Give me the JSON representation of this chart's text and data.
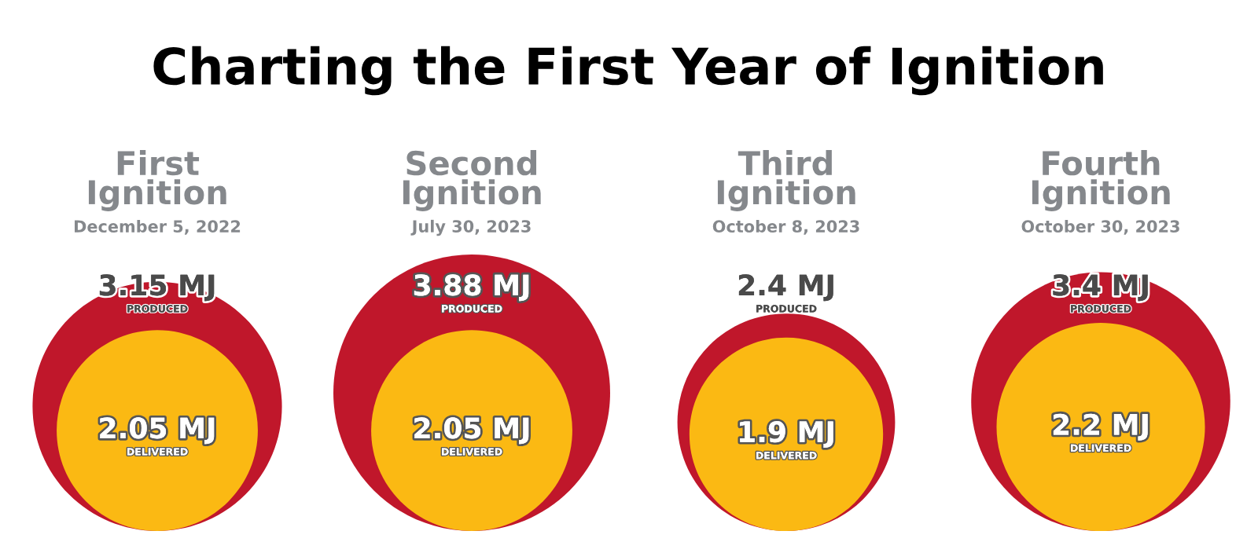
{
  "chart_data": {
    "type": "other",
    "title": "Charting the First Year of Ignition",
    "categories": [
      "First Ignition",
      "Second Ignition",
      "Third Ignition",
      "Fourth Ignition"
    ],
    "annotations": [
      "December 5, 2022",
      "July 30, 2023",
      "October 8, 2023",
      "October 30, 2023"
    ],
    "series": [
      {
        "name": "PRODUCED",
        "color": "#c0172b",
        "values": [
          3.15,
          3.88,
          2.4,
          3.4
        ],
        "value_labels": [
          "3.15 MJ",
          "3.88 MJ",
          "2.4 MJ",
          "3.4 MJ"
        ]
      },
      {
        "name": "DELIVERED",
        "color": "#fbb913",
        "values": [
          2.05,
          2.05,
          1.9,
          2.2
        ],
        "value_labels": [
          "2.05 MJ",
          "2.05 MJ",
          "1.9 MJ",
          "2.2 MJ"
        ]
      }
    ]
  }
}
